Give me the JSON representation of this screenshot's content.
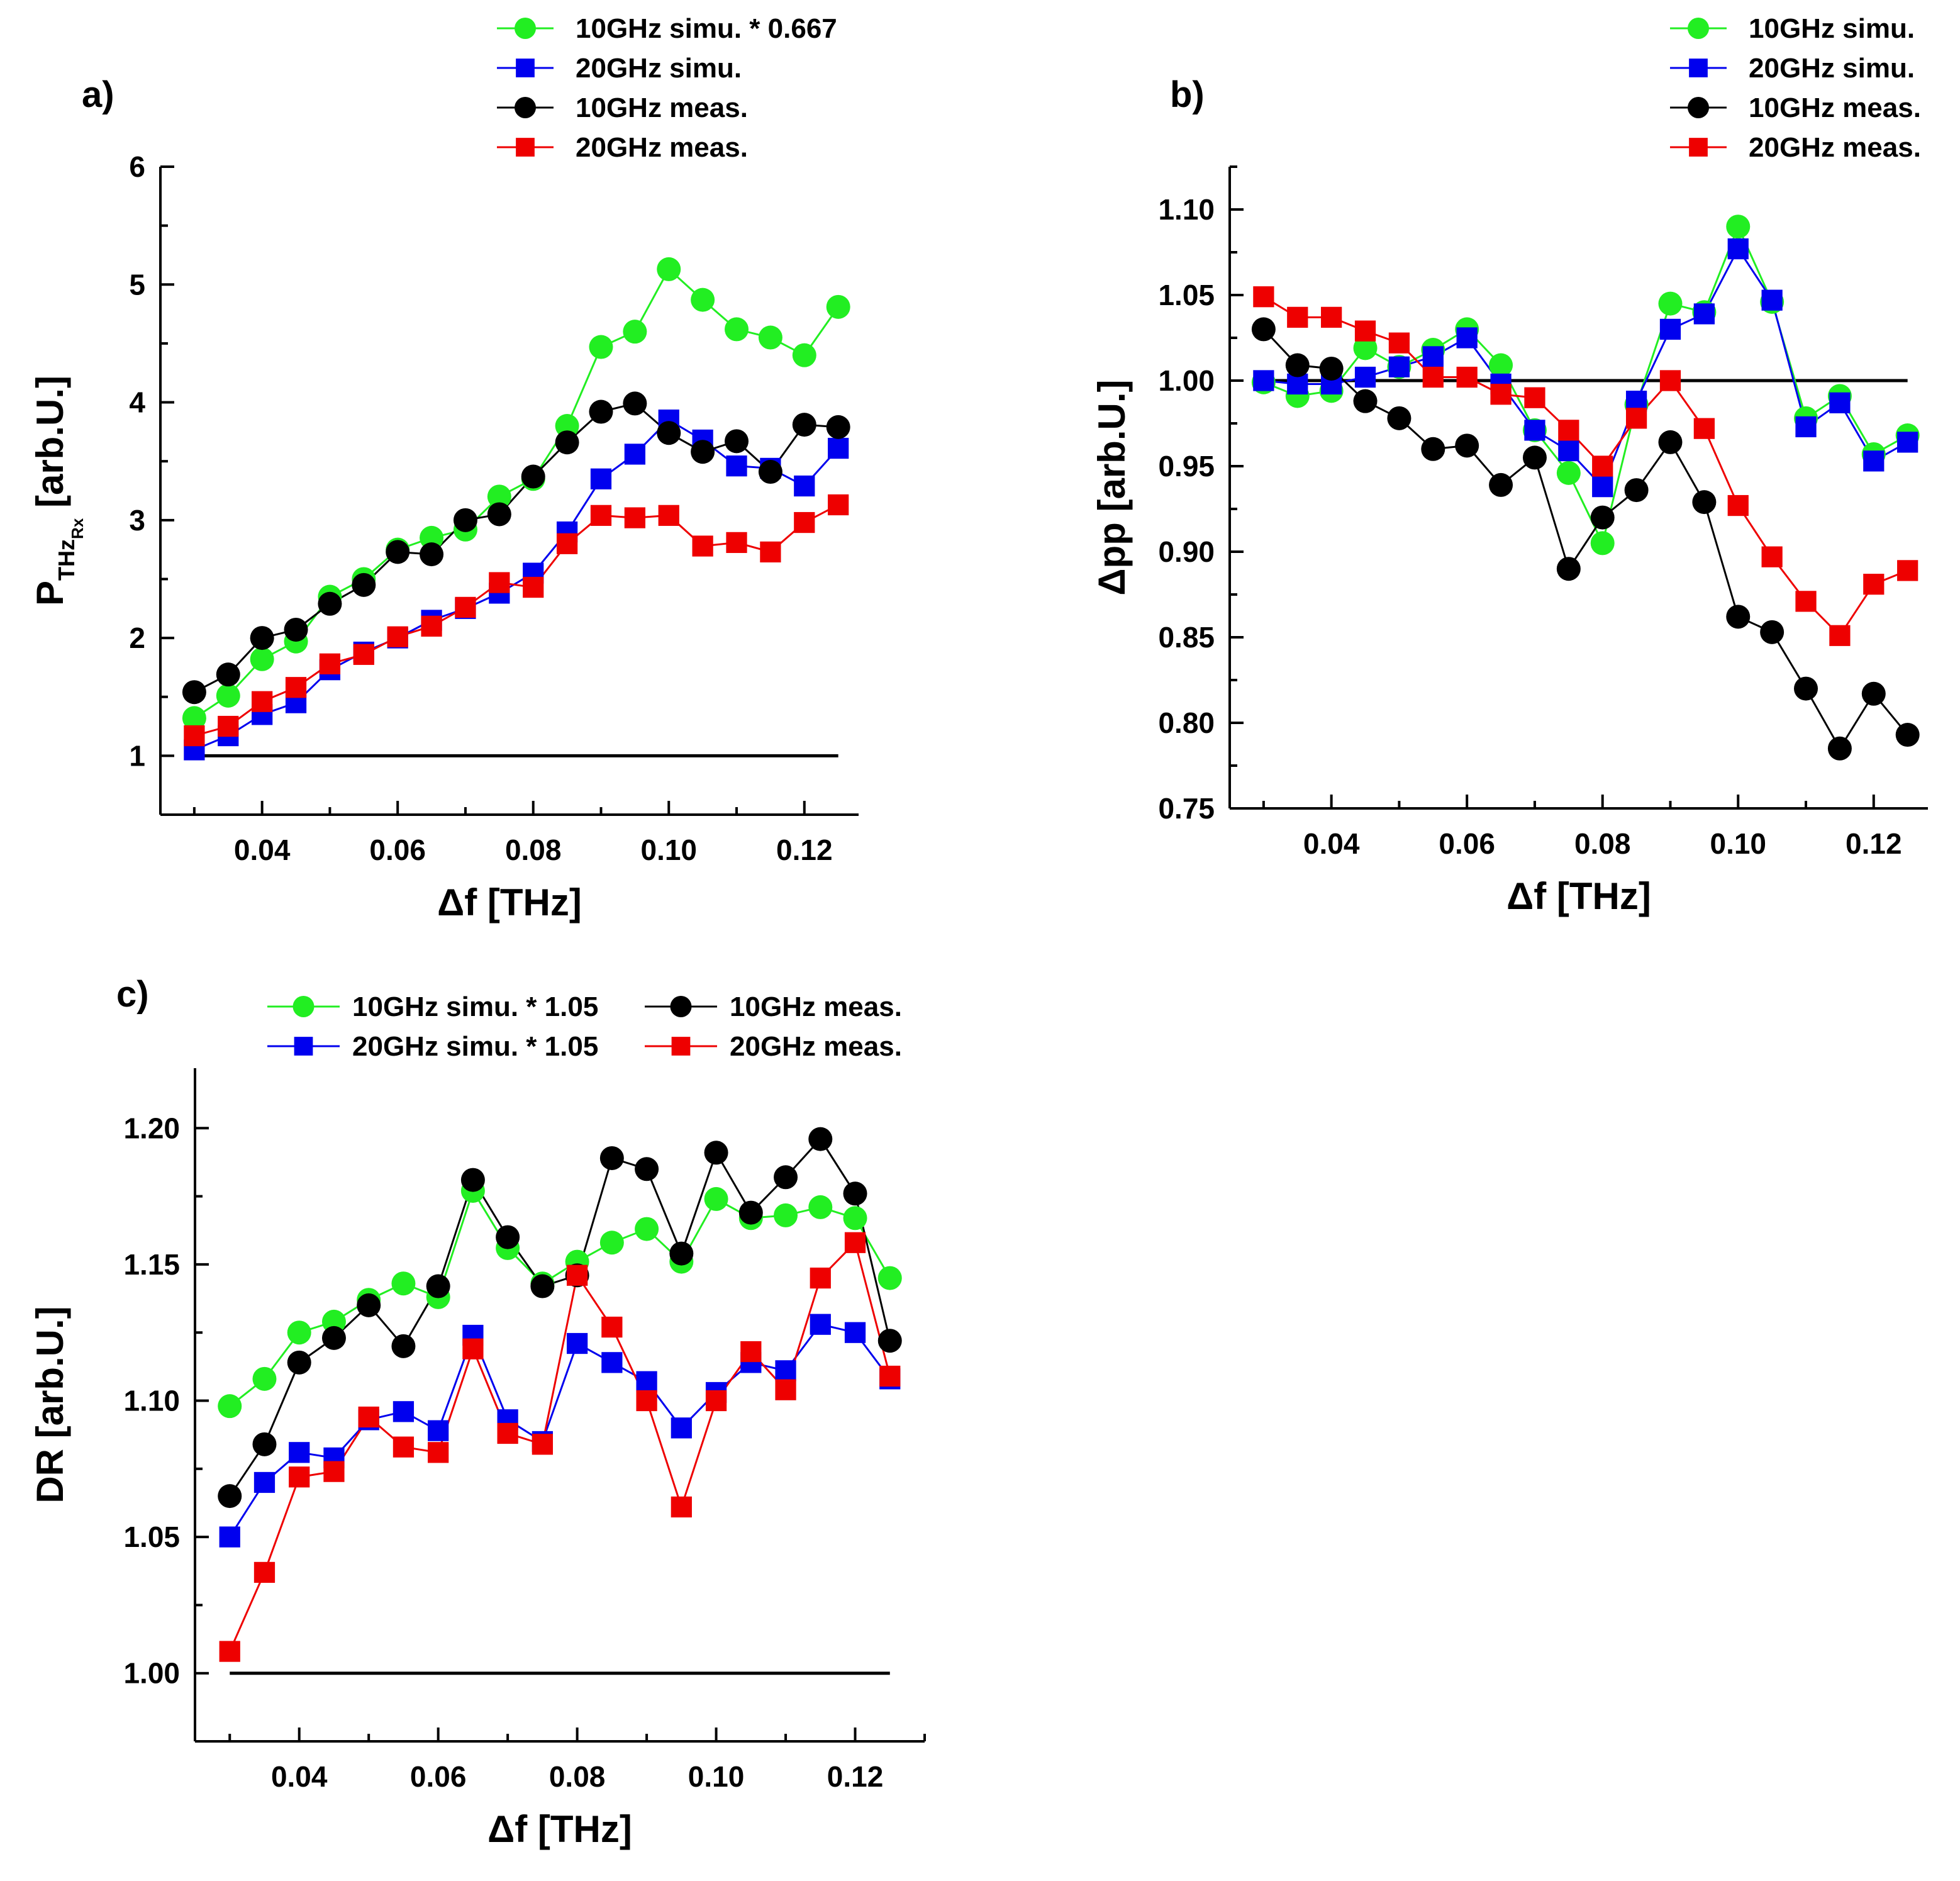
{
  "chart_data": [
    {
      "id": "a",
      "type": "line",
      "panel_label": "a)",
      "xlabel": "Δf [THz]",
      "ylabel_main": "P",
      "ylabel_sub": "THz",
      "ylabel_subsub": "Rx",
      "ylabel_rest": " [arb.U.]",
      "xlim": [
        0.025,
        0.128
      ],
      "ylim": [
        0.5,
        6
      ],
      "xticks": [
        0.04,
        0.06,
        0.08,
        0.1,
        0.12
      ],
      "xtick_labels": [
        "0.04",
        "0.06",
        "0.08",
        "0.10",
        "0.12"
      ],
      "yticks": [
        1,
        2,
        3,
        4,
        5,
        6
      ],
      "ytick_labels": [
        "1",
        "2",
        "3",
        "4",
        "5",
        "6"
      ],
      "reference_line": {
        "x": [
          0.03,
          0.125
        ],
        "y": 1
      },
      "legend_position": "above-right",
      "x": [
        0.03,
        0.035,
        0.04,
        0.045,
        0.05,
        0.055,
        0.06,
        0.065,
        0.07,
        0.075,
        0.08,
        0.085,
        0.09,
        0.095,
        0.1,
        0.105,
        0.11,
        0.115,
        0.12,
        0.125
      ],
      "series": [
        {
          "name": "10GHz simu. * 0.667",
          "color": "#22ee22",
          "marker": "circle",
          "values": [
            1.32,
            1.51,
            1.82,
            1.97,
            2.35,
            2.5,
            2.75,
            2.85,
            2.92,
            3.2,
            3.35,
            3.8,
            4.47,
            4.6,
            5.13,
            4.87,
            4.62,
            4.55,
            4.4,
            4.81
          ]
        },
        {
          "name": "20GHz simu.",
          "color": "#0000ee",
          "marker": "square",
          "values": [
            1.05,
            1.17,
            1.35,
            1.45,
            1.73,
            1.88,
            2.0,
            2.15,
            2.25,
            2.38,
            2.55,
            2.9,
            3.35,
            3.56,
            3.85,
            3.68,
            3.46,
            3.44,
            3.29,
            3.61
          ]
        },
        {
          "name": "10GHz meas.",
          "color": "#000000",
          "marker": "circle",
          "values": [
            1.54,
            1.69,
            2.0,
            2.07,
            2.29,
            2.45,
            2.73,
            2.71,
            3.0,
            3.05,
            3.37,
            3.66,
            3.92,
            3.99,
            3.74,
            3.58,
            3.67,
            3.41,
            3.81,
            3.79
          ]
        },
        {
          "name": "20GHz meas.",
          "color": "#ee0000",
          "marker": "square",
          "values": [
            1.17,
            1.25,
            1.46,
            1.58,
            1.78,
            1.86,
            2.01,
            2.1,
            2.26,
            2.47,
            2.43,
            2.8,
            3.04,
            3.02,
            3.04,
            2.78,
            2.81,
            2.73,
            2.98,
            3.13
          ]
        }
      ]
    },
    {
      "id": "b",
      "type": "line",
      "panel_label": "b)",
      "xlabel": "Δf [THz]",
      "ylabel": "Δpp [arb.U.]",
      "xlim": [
        0.025,
        0.128
      ],
      "ylim": [
        0.75,
        1.125
      ],
      "xticks": [
        0.04,
        0.06,
        0.08,
        0.1,
        0.12
      ],
      "xtick_labels": [
        "0.04",
        "0.06",
        "0.08",
        "0.10",
        "0.12"
      ],
      "yticks": [
        0.75,
        0.8,
        0.85,
        0.9,
        0.95,
        1.0,
        1.05,
        1.1
      ],
      "ytick_labels": [
        "0.75",
        "0.80",
        "0.85",
        "0.90",
        "0.95",
        "1.00",
        "1.05",
        "1.10"
      ],
      "reference_line": {
        "x": [
          0.03,
          0.125
        ],
        "y": 1.0
      },
      "legend_position": "top-right",
      "x": [
        0.03,
        0.035,
        0.04,
        0.045,
        0.05,
        0.055,
        0.06,
        0.065,
        0.07,
        0.075,
        0.08,
        0.085,
        0.09,
        0.095,
        0.1,
        0.105,
        0.11,
        0.115,
        0.12,
        0.125
      ],
      "series": [
        {
          "name": "10GHz simu.",
          "color": "#22ee22",
          "marker": "circle",
          "values": [
            0.999,
            0.991,
            0.994,
            1.019,
            1.008,
            1.018,
            1.03,
            1.009,
            0.971,
            0.946,
            0.905,
            0.986,
            1.045,
            1.04,
            1.09,
            1.046,
            0.978,
            0.991,
            0.957,
            0.968
          ]
        },
        {
          "name": "20GHz simu.",
          "color": "#0000ee",
          "marker": "square",
          "values": [
            1.0,
            0.998,
            0.998,
            1.002,
            1.008,
            1.014,
            1.025,
            0.998,
            0.971,
            0.959,
            0.938,
            0.988,
            1.03,
            1.039,
            1.077,
            1.047,
            0.973,
            0.987,
            0.953,
            0.964
          ]
        },
        {
          "name": "10GHz meas.",
          "color": "#000000",
          "marker": "circle",
          "values": [
            1.03,
            1.009,
            1.007,
            0.988,
            0.978,
            0.96,
            0.962,
            0.939,
            0.955,
            0.89,
            0.92,
            0.936,
            0.964,
            0.929,
            0.862,
            0.853,
            0.82,
            0.785,
            0.817,
            0.793
          ]
        },
        {
          "name": "20GHz meas.",
          "color": "#ee0000",
          "marker": "square",
          "values": [
            1.049,
            1.037,
            1.037,
            1.029,
            1.022,
            1.002,
            1.002,
            0.992,
            0.99,
            0.971,
            0.95,
            0.978,
            1.0,
            0.972,
            0.927,
            0.897,
            0.871,
            0.851,
            0.881,
            0.889
          ]
        }
      ]
    },
    {
      "id": "c",
      "type": "line",
      "panel_label": "c)",
      "xlabel": "Δf [THz]",
      "ylabel": "DR [arb.U.]",
      "xlim": [
        0.025,
        0.13
      ],
      "ylim": [
        0.975,
        1.222
      ],
      "xticks": [
        0.04,
        0.06,
        0.08,
        0.1,
        0.12
      ],
      "xtick_labels": [
        "0.04",
        "0.06",
        "0.08",
        "0.10",
        "0.12"
      ],
      "yticks": [
        1.0,
        1.05,
        1.1,
        1.15,
        1.2
      ],
      "ytick_labels": [
        "1.00",
        "1.05",
        "1.10",
        "1.15",
        "1.20"
      ],
      "reference_line": {
        "x": [
          0.03,
          0.125
        ],
        "y": 1.0
      },
      "legend_position": "top-center",
      "x": [
        0.03,
        0.035,
        0.04,
        0.045,
        0.05,
        0.055,
        0.06,
        0.065,
        0.07,
        0.075,
        0.08,
        0.085,
        0.09,
        0.095,
        0.1,
        0.105,
        0.11,
        0.115,
        0.12,
        0.125
      ],
      "series": [
        {
          "name": "10GHz simu. * 1.05",
          "color": "#22ee22",
          "marker": "circle",
          "values": [
            1.098,
            1.108,
            1.125,
            1.129,
            1.137,
            1.143,
            1.138,
            1.177,
            1.156,
            1.143,
            1.151,
            1.158,
            1.163,
            1.151,
            1.174,
            1.167,
            1.168,
            1.171,
            1.167,
            1.145
          ]
        },
        {
          "name": "10GHz meas.",
          "color": "#000000",
          "marker": "circle",
          "values": [
            1.065,
            1.084,
            1.114,
            1.123,
            1.135,
            1.12,
            1.142,
            1.181,
            1.16,
            1.142,
            1.146,
            1.189,
            1.185,
            1.154,
            1.191,
            1.169,
            1.182,
            1.196,
            1.176,
            1.122
          ]
        },
        {
          "name": "20GHz simu. * 1.05",
          "color": "#0000ee",
          "marker": "square",
          "values": [
            1.05,
            1.07,
            1.081,
            1.079,
            1.093,
            1.096,
            1.089,
            1.124,
            1.093,
            1.085,
            1.121,
            1.114,
            1.107,
            1.09,
            1.103,
            1.114,
            1.111,
            1.128,
            1.125,
            1.108
          ]
        },
        {
          "name": "20GHz meas.",
          "color": "#ee0000",
          "marker": "square",
          "values": [
            1.008,
            1.037,
            1.072,
            1.074,
            1.094,
            1.083,
            1.081,
            1.119,
            1.088,
            1.084,
            1.146,
            1.127,
            1.1,
            1.061,
            1.1,
            1.118,
            1.104,
            1.145,
            1.158,
            1.109
          ]
        }
      ]
    }
  ]
}
